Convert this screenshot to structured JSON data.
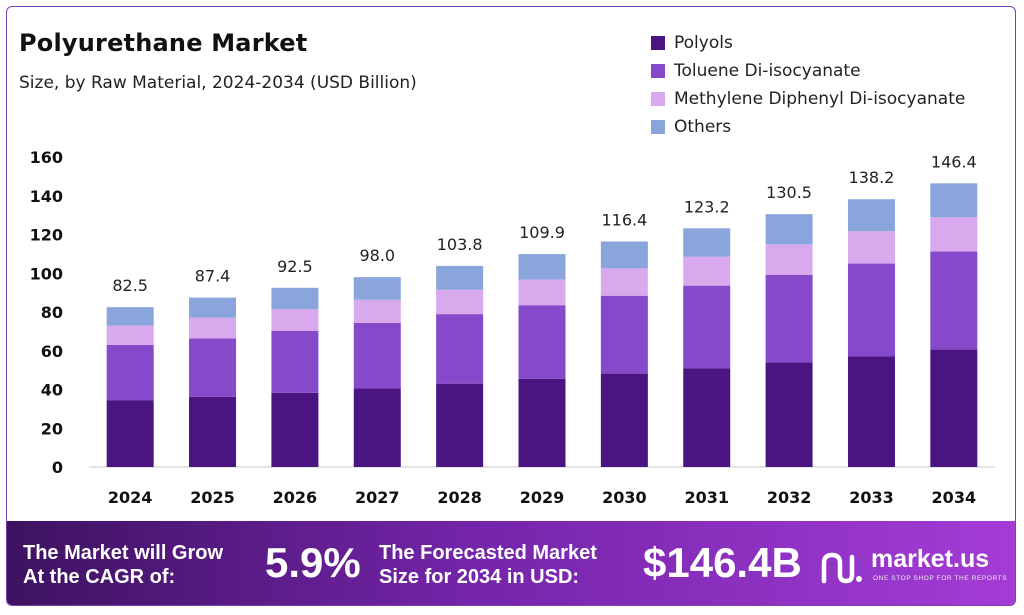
{
  "chart_data": {
    "type": "bar",
    "stacked": true,
    "title": "Polyurethane Market",
    "subtitle": "Size, by Raw Material, 2024-2034 (USD Billion)",
    "categories": [
      "2024",
      "2025",
      "2026",
      "2027",
      "2028",
      "2029",
      "2030",
      "2031",
      "2032",
      "2033",
      "2034"
    ],
    "series": [
      {
        "name": "Polyols",
        "color": "#4a1580",
        "values": [
          34.5,
          36.2,
          38.3,
          40.5,
          43.0,
          45.5,
          48.2,
          51.0,
          54.0,
          57.2,
          60.6
        ]
      },
      {
        "name": "Toluene Di-isocyanate",
        "color": "#8649c9",
        "values": [
          28.5,
          30.2,
          32.0,
          33.9,
          35.9,
          38.0,
          40.2,
          42.6,
          45.1,
          47.8,
          50.6
        ]
      },
      {
        "name": "Methylene Diphenyl Di-isocyanate",
        "color": "#d8a9ec",
        "values": [
          10.0,
          10.6,
          11.2,
          11.9,
          12.6,
          13.3,
          14.1,
          14.9,
          15.8,
          16.7,
          17.7
        ]
      },
      {
        "name": "Others",
        "color": "#8aa5dc",
        "values": [
          9.5,
          10.4,
          11.0,
          11.7,
          12.3,
          13.1,
          13.9,
          14.7,
          15.6,
          16.5,
          17.5
        ]
      }
    ],
    "totals": [
      "82.5",
      "87.4",
      "92.5",
      "98.0",
      "103.8",
      "109.9",
      "116.4",
      "123.2",
      "130.5",
      "138.2",
      "146.4"
    ],
    "ylim": [
      0,
      160
    ],
    "yticks": [
      "0",
      "20",
      "40",
      "60",
      "80",
      "100",
      "120",
      "140",
      "160"
    ],
    "grid": false,
    "legend_position": "top-right"
  },
  "banner": {
    "cagr_label_line1": "The Market will Grow",
    "cagr_label_line2": "At the CAGR of:",
    "cagr_value": "5.9%",
    "forecast_label_line1": "The Forecasted Market",
    "forecast_label_line2": "Size for 2034 in USD:",
    "forecast_value": "$146.4B",
    "brand_name": "market.us",
    "brand_tagline": "ONE STOP SHOP FOR THE REPORTS"
  }
}
